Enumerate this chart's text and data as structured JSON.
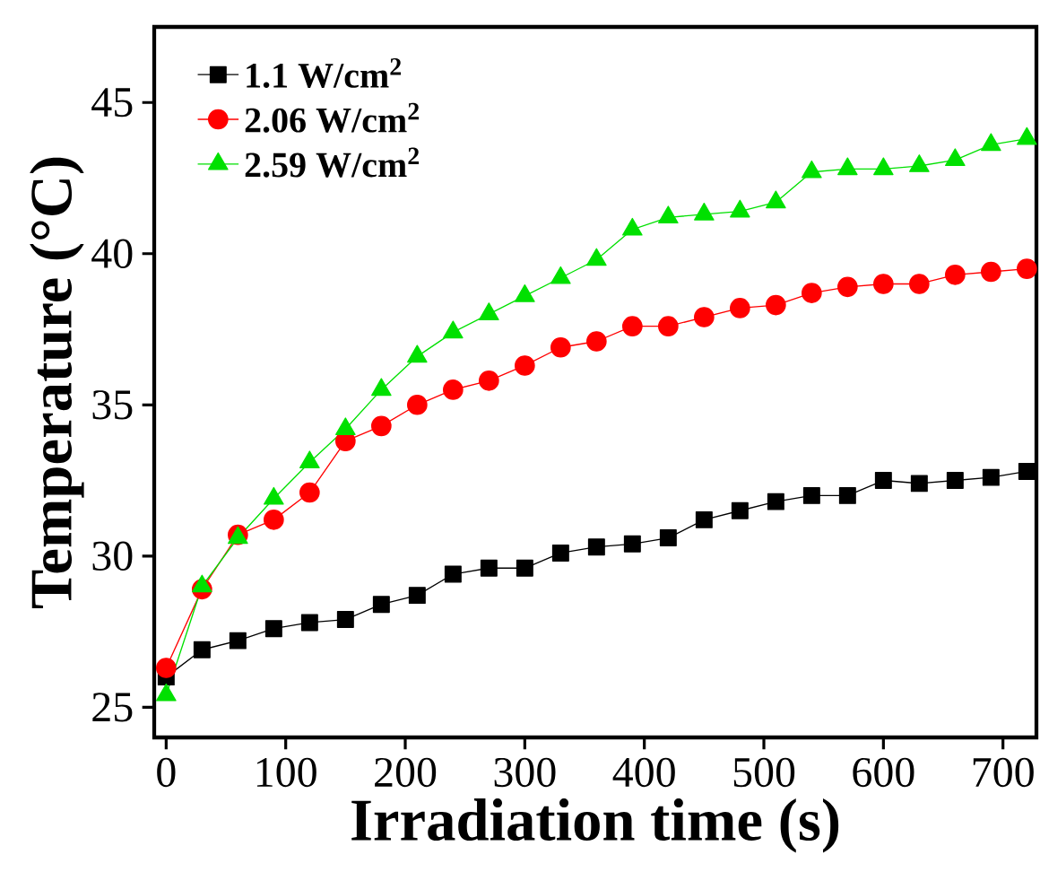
{
  "chart_data": {
    "type": "line",
    "xlabel": "Irradiation time (s)",
    "ylabel": "Temperature (°C)",
    "x": [
      0,
      30,
      60,
      90,
      120,
      150,
      180,
      210,
      240,
      270,
      300,
      330,
      360,
      390,
      420,
      450,
      480,
      510,
      540,
      570,
      600,
      630,
      660,
      690,
      720
    ],
    "xlim": [
      -10,
      728
    ],
    "ylim": [
      24,
      47.5
    ],
    "xticks": [
      0,
      100,
      200,
      300,
      400,
      500,
      600,
      700
    ],
    "yticks": [
      25,
      30,
      35,
      40,
      45
    ],
    "grid": false,
    "legend": "top left",
    "line_style": "solid",
    "series": [
      {
        "name": "1.1 W/cm$^{2}$",
        "color": "#000000",
        "marker": "square",
        "values": [
          26.0,
          26.9,
          27.2,
          27.6,
          27.8,
          27.9,
          28.4,
          28.7,
          29.4,
          29.6,
          29.6,
          30.1,
          30.3,
          30.4,
          30.6,
          31.2,
          31.5,
          31.8,
          32.0,
          32.0,
          32.5,
          32.4,
          32.5,
          32.6,
          32.8
        ]
      },
      {
        "name": "2.06 W/cm$^{2}$",
        "color": "#ff0000",
        "marker": "circle",
        "values": [
          26.3,
          28.9,
          30.7,
          31.2,
          32.1,
          33.8,
          34.3,
          35.0,
          35.5,
          35.8,
          36.3,
          36.9,
          37.1,
          37.6,
          37.6,
          37.9,
          38.2,
          38.3,
          38.7,
          38.9,
          39.0,
          39.0,
          39.3,
          39.4,
          39.5
        ]
      },
      {
        "name": "2.59 W/cm$^{2}$",
        "color": "#00e000",
        "marker": "triangle",
        "values": [
          25.4,
          29.0,
          30.6,
          31.9,
          33.1,
          34.2,
          35.5,
          36.6,
          37.4,
          38.0,
          38.6,
          39.2,
          39.8,
          40.8,
          41.2,
          41.3,
          41.4,
          41.7,
          42.7,
          42.8,
          42.8,
          42.9,
          43.1,
          43.6,
          43.8
        ]
      }
    ]
  }
}
